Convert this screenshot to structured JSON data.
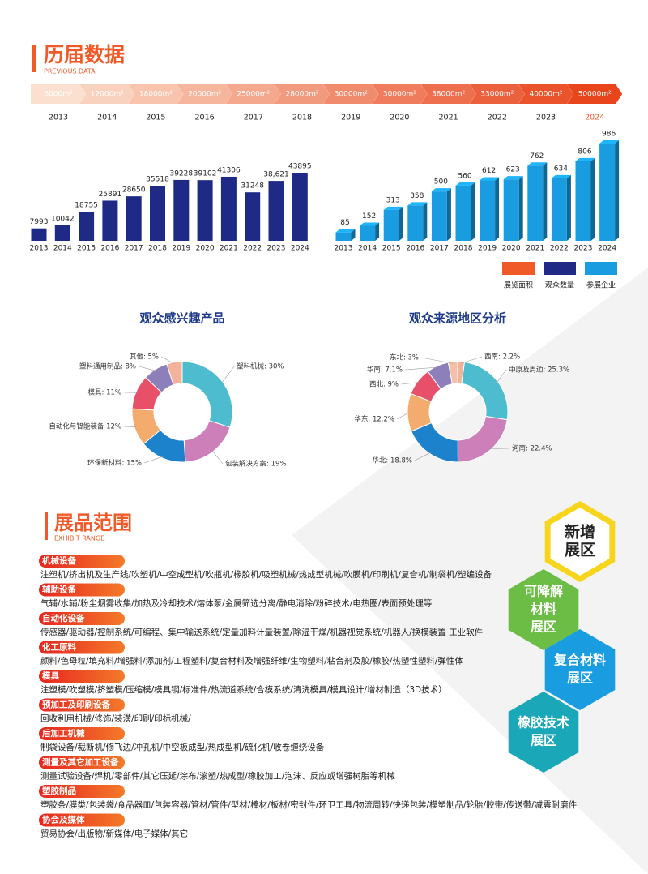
{
  "header": {
    "title": "历届数据",
    "subtitle": "PREVIOUS DATA"
  },
  "timeline": {
    "areas": [
      "6000m²",
      "12000m²",
      "18000m²",
      "20000m²",
      "25000m²",
      "28000m²",
      "30000m²",
      "30000m²",
      "38000m²",
      "33000m²",
      "40000m²",
      "50000m²"
    ],
    "years": [
      "2013",
      "2014",
      "2015",
      "2016",
      "2017",
      "2018",
      "2019",
      "2020",
      "2021",
      "2022",
      "2023",
      "2024"
    ]
  },
  "chart_data": [
    {
      "type": "bar",
      "categories": [
        "2013",
        "2014",
        "2015",
        "2016",
        "2017",
        "2018",
        "2019",
        "2020",
        "2021",
        "2022",
        "2023",
        "2024"
      ],
      "values": [
        7993,
        10042,
        18755,
        25891,
        28650,
        35518,
        39228,
        39102,
        41306,
        31248,
        38621,
        43895
      ],
      "value_labels": [
        "7993",
        "10042",
        "18755",
        "25891",
        "28650",
        "35518",
        "39228",
        "39102",
        "41306",
        "31248",
        "38,621",
        "43895"
      ],
      "color": "#1f2a86",
      "three_d": false
    },
    {
      "type": "bar",
      "categories": [
        "2013",
        "2014",
        "2015",
        "2016",
        "2017",
        "2018",
        "2019",
        "2020",
        "2021",
        "2022",
        "2023",
        "2024"
      ],
      "values": [
        85,
        152,
        313,
        358,
        500,
        560,
        612,
        623,
        762,
        634,
        806,
        986
      ],
      "color": "#1a9de0",
      "three_d": true
    },
    {
      "type": "pie",
      "title": "观众感兴趣产品",
      "donut": true,
      "values": [
        30,
        19,
        15,
        12,
        11,
        8,
        5
      ],
      "value_labels": [
        "塑料机械: 30%",
        "包装解决方案: 19%",
        "环保新材料: 15%",
        "自动化与智能装备 12%",
        "模具: 11%",
        "塑料通用制品: 8%",
        "其他: 5%"
      ],
      "colors": [
        "#4dbccf",
        "#cc7fb8",
        "#1d82cc",
        "#f4ab6e",
        "#e8506a",
        "#8d7fba",
        "#f2b39a"
      ]
    },
    {
      "type": "pie",
      "title": "观众来源地区分析",
      "donut": true,
      "values": [
        2.2,
        25.3,
        22.4,
        18.8,
        12.2,
        9,
        7.1,
        3
      ],
      "value_labels": [
        "西南: 2.2%",
        "中原及周边: 25.3%",
        "河南: 22.4%",
        "华北: 18.8%",
        "华东: 12.2%",
        "西北: 9%",
        "华南: 7.1%",
        "东北: 3%"
      ],
      "colors": [
        "#f2b39a",
        "#4dbccf",
        "#cc7fb8",
        "#1d82cc",
        "#f4ab6e",
        "#e8506a",
        "#8d7fba",
        "#f4c1a8"
      ]
    }
  ],
  "legend": [
    {
      "name": "展览面积",
      "color": "#f05a28"
    },
    {
      "name": "观众数量",
      "color": "#1f2a86"
    },
    {
      "name": "参展企业",
      "color": "#1a9de0"
    }
  ],
  "exhibit_range": {
    "title": "展品范围",
    "subtitle": "EXHIBIT RANGE",
    "items": [
      {
        "category": "机械设备",
        "text": "注塑机/挤出机及生产线/吹塑机/中空成型机/吹瓶机/橡胶机/吸塑机械/热成型机械/吹膜机/印刷机/复合机/制袋机/塑编设备"
      },
      {
        "category": "辅助设备",
        "text": "气辅/水辅/粉尘烟雾收集/加热及冷却技术/熔体泵/金属筛选分离/静电消除/粉碎技术/电热圈/表面预处理等"
      },
      {
        "category": "自动化设备",
        "text": "传感器/驱动器/控制系统/可编程、集中输送系统/定量加料计量装置/除湿干燥/机器视觉系统/机器人/换模装置 工业软件"
      },
      {
        "category": "化工原料",
        "text": "颜料/色母粒/填充料/增强料/添加剂/工程塑料/复合材料及增强纤维/生物塑料/粘合剂及胶/橡胶/热塑性塑料/弹性体"
      },
      {
        "category": "模具",
        "text": "注塑模/吹塑模/挤塑模/压缩模/模具钢/标准件/热流道系统/合模系统/清洗模具/模具设计/增材制造（3D技术）"
      },
      {
        "category": "预加工及印刷设备",
        "text": "回收利用机械/修饰/装潢/印刷/印标机械/"
      },
      {
        "category": "后加工机械",
        "text": "制袋设备/裁断机/修飞边/冲孔机/中空板成型/热成型机/硫化机/收卷缠绕设备"
      },
      {
        "category": "测量及其它加工设备",
        "text": "测量试验设备/焊机/零部件/其它压延/涂布/滚塑/热成型/橡胶加工/泡沫、反应或增强树脂等机械"
      },
      {
        "category": "塑胶制品",
        "text": "塑胶条/膜类/包装袋/食品器皿/包装容器/管材/管件/型材/棒材/板材/密封件/环卫工具/物流周转/快递包装/模塑制品/轮胎/胶带/传送带/减震耐磨件"
      },
      {
        "category": "协会及媒体",
        "text": "贸易协会/出版物/新媒体/电子媒体/其它"
      }
    ]
  },
  "zones": [
    {
      "lines": [
        "新增",
        "展区"
      ],
      "color": "#f7d51d"
    },
    {
      "lines": [
        "可降解",
        "材料",
        "展区"
      ],
      "color": "#6cbd45"
    },
    {
      "lines": [
        "复合材料",
        "展区"
      ],
      "color": "#1a9de0"
    },
    {
      "lines": [
        "橡胶技术",
        "展区"
      ],
      "color": "#1aa7b8"
    }
  ]
}
